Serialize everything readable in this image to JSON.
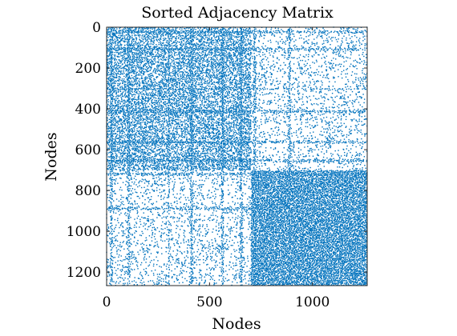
{
  "chart_data": {
    "type": "scatter",
    "title": "Sorted Adjacency Matrix",
    "xlabel": "Nodes",
    "ylabel": "Nodes",
    "xlim": [
      0,
      1266
    ],
    "ylim": [
      0,
      1266
    ],
    "y_reversed": true,
    "xticks": [
      0,
      500,
      1000
    ],
    "yticks": [
      0,
      200,
      400,
      600,
      800,
      1000,
      1200
    ],
    "grid": false,
    "marker_color": "#0072BD",
    "n_nodes": 1266,
    "communities": [
      {
        "start": 0,
        "end": 700,
        "within_density": 0.032
      },
      {
        "start": 700,
        "end": 1266,
        "within_density": 0.05
      }
    ],
    "between_density": 0.008,
    "hub_nodes": [
      20,
      105,
      300,
      412,
      560,
      650,
      718,
      885
    ]
  }
}
